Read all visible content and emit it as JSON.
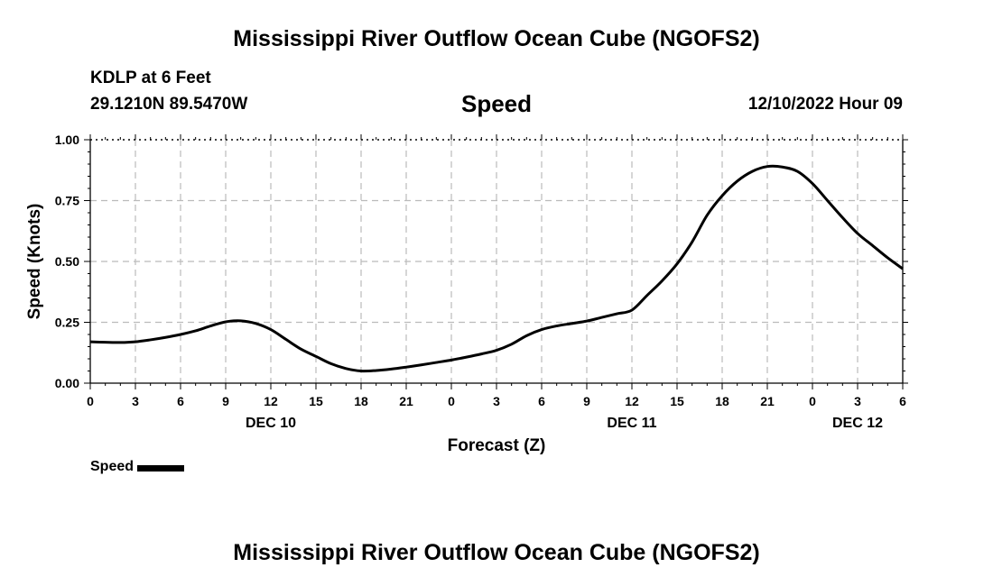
{
  "title": "Mississippi River Outflow Ocean Cube (NGOFS2)",
  "repeat_title": "Mississippi River Outflow Ocean Cube (NGOFS2)",
  "station": "KDLP at 6 Feet",
  "coords": "29.1210N  89.5470W",
  "plot_title": "Speed",
  "datetime": "12/10/2022 Hour 09",
  "legend_label": "Speed",
  "colors": {
    "line": "#000000",
    "grid": "#bbbbbb"
  },
  "chart_data": {
    "type": "line",
    "title": "Speed",
    "xlabel": "Forecast (Z)",
    "ylabel": "Speed (Knots)",
    "xlim": [
      0,
      54
    ],
    "ylim": [
      0,
      1.0
    ],
    "yticks": [
      "0.00",
      "0.25",
      "0.50",
      "0.75",
      "1.00"
    ],
    "xtick_labels": [
      "0",
      "3",
      "6",
      "9",
      "12",
      "15",
      "18",
      "21",
      "0",
      "3",
      "6",
      "9",
      "12",
      "15",
      "18",
      "21",
      "0",
      "3",
      "6"
    ],
    "date_labels": [
      {
        "label": "DEC 10",
        "hour": 12
      },
      {
        "label": "DEC 11",
        "hour": 36
      },
      {
        "label": "DEC 12",
        "hour": 51
      }
    ],
    "series": [
      {
        "name": "Speed",
        "x": [
          0,
          1,
          2,
          3,
          4,
          5,
          6,
          7,
          8,
          9,
          10,
          11,
          12,
          13,
          14,
          15,
          16,
          17,
          18,
          19,
          20,
          21,
          22,
          23,
          24,
          25,
          26,
          27,
          28,
          29,
          30,
          31,
          32,
          33,
          34,
          35,
          36,
          37,
          38,
          39,
          40,
          41,
          42,
          43,
          44,
          45,
          46,
          47,
          48,
          49,
          50,
          51,
          52,
          53,
          54
        ],
        "values": [
          0.17,
          0.168,
          0.167,
          0.17,
          0.178,
          0.188,
          0.2,
          0.215,
          0.235,
          0.252,
          0.256,
          0.245,
          0.22,
          0.18,
          0.14,
          0.11,
          0.08,
          0.06,
          0.05,
          0.052,
          0.058,
          0.066,
          0.075,
          0.085,
          0.095,
          0.107,
          0.12,
          0.135,
          0.16,
          0.195,
          0.22,
          0.235,
          0.245,
          0.255,
          0.27,
          0.285,
          0.3,
          0.36,
          0.42,
          0.49,
          0.58,
          0.69,
          0.77,
          0.83,
          0.87,
          0.89,
          0.888,
          0.87,
          0.82,
          0.75,
          0.68,
          0.615,
          0.565,
          0.515,
          0.47
        ]
      }
    ]
  }
}
